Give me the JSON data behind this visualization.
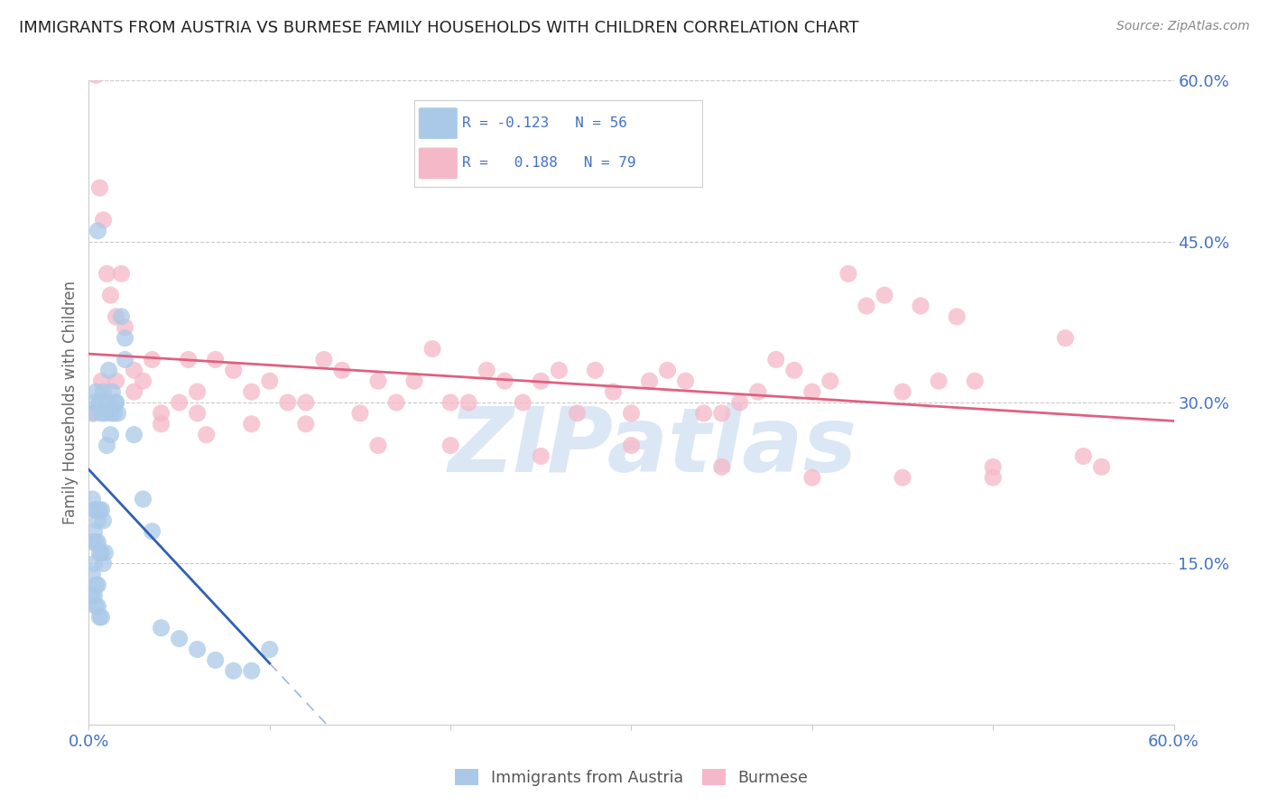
{
  "title": "IMMIGRANTS FROM AUSTRIA VS BURMESE FAMILY HOUSEHOLDS WITH CHILDREN CORRELATION CHART",
  "source": "Source: ZipAtlas.com",
  "ylabel": "Family Households with Children",
  "xlim": [
    0.0,
    0.6
  ],
  "ylim": [
    0.0,
    0.6
  ],
  "yticks_right": [
    0.15,
    0.3,
    0.45,
    0.6
  ],
  "ytick_right_labels": [
    "15.0%",
    "30.0%",
    "45.0%",
    "60.0%"
  ],
  "grid_color": "#c8c8c8",
  "bg_color": "#ffffff",
  "austria_color": "#aac9e8",
  "burmese_color": "#f5b8c8",
  "austria_line_color": "#3060b0",
  "burmese_line_color": "#e06080",
  "austria_R": -0.123,
  "austria_N": 56,
  "burmese_R": 0.188,
  "burmese_N": 79,
  "austria_label": "Immigrants from Austria",
  "burmese_label": "Burmese",
  "label_color": "#4472c4",
  "title_color": "#222222",
  "source_color": "#888888",
  "watermark": "ZIPatlas",
  "watermark_color": "#c5d8ef",
  "austria_x": [
    0.002,
    0.003,
    0.004,
    0.005,
    0.006,
    0.007,
    0.008,
    0.009,
    0.01,
    0.011,
    0.012,
    0.013,
    0.014,
    0.015,
    0.016,
    0.002,
    0.003,
    0.004,
    0.005,
    0.006,
    0.007,
    0.008,
    0.002,
    0.003,
    0.004,
    0.005,
    0.006,
    0.007,
    0.008,
    0.009,
    0.002,
    0.003,
    0.004,
    0.005,
    0.002,
    0.003,
    0.004,
    0.005,
    0.006,
    0.007,
    0.01,
    0.012,
    0.015,
    0.018,
    0.02,
    0.025,
    0.03,
    0.035,
    0.04,
    0.05,
    0.06,
    0.07,
    0.08,
    0.09,
    0.1,
    0.02
  ],
  "austria_y": [
    0.29,
    0.3,
    0.31,
    0.46,
    0.3,
    0.29,
    0.31,
    0.29,
    0.3,
    0.33,
    0.29,
    0.31,
    0.29,
    0.3,
    0.29,
    0.21,
    0.2,
    0.2,
    0.19,
    0.2,
    0.2,
    0.19,
    0.17,
    0.18,
    0.17,
    0.17,
    0.16,
    0.16,
    0.15,
    0.16,
    0.14,
    0.15,
    0.13,
    0.13,
    0.12,
    0.12,
    0.11,
    0.11,
    0.1,
    0.1,
    0.26,
    0.27,
    0.3,
    0.38,
    0.36,
    0.27,
    0.21,
    0.18,
    0.09,
    0.08,
    0.07,
    0.06,
    0.05,
    0.05,
    0.07,
    0.34
  ],
  "burmese_x": [
    0.004,
    0.006,
    0.008,
    0.01,
    0.012,
    0.015,
    0.018,
    0.02,
    0.025,
    0.03,
    0.035,
    0.04,
    0.05,
    0.055,
    0.06,
    0.065,
    0.07,
    0.08,
    0.09,
    0.1,
    0.11,
    0.12,
    0.13,
    0.14,
    0.15,
    0.16,
    0.17,
    0.18,
    0.19,
    0.2,
    0.21,
    0.22,
    0.23,
    0.24,
    0.25,
    0.26,
    0.27,
    0.28,
    0.29,
    0.3,
    0.31,
    0.32,
    0.33,
    0.34,
    0.35,
    0.36,
    0.37,
    0.38,
    0.39,
    0.4,
    0.41,
    0.42,
    0.43,
    0.44,
    0.45,
    0.46,
    0.47,
    0.48,
    0.49,
    0.5,
    0.003,
    0.007,
    0.015,
    0.025,
    0.04,
    0.06,
    0.09,
    0.12,
    0.16,
    0.2,
    0.25,
    0.3,
    0.35,
    0.4,
    0.45,
    0.5,
    0.54,
    0.55,
    0.56
  ],
  "burmese_y": [
    0.605,
    0.5,
    0.47,
    0.42,
    0.4,
    0.38,
    0.42,
    0.37,
    0.33,
    0.32,
    0.34,
    0.29,
    0.3,
    0.34,
    0.31,
    0.27,
    0.34,
    0.33,
    0.31,
    0.32,
    0.3,
    0.3,
    0.34,
    0.33,
    0.29,
    0.32,
    0.3,
    0.32,
    0.35,
    0.3,
    0.3,
    0.33,
    0.32,
    0.3,
    0.32,
    0.33,
    0.29,
    0.33,
    0.31,
    0.29,
    0.32,
    0.33,
    0.32,
    0.29,
    0.29,
    0.3,
    0.31,
    0.34,
    0.33,
    0.31,
    0.32,
    0.42,
    0.39,
    0.4,
    0.31,
    0.39,
    0.32,
    0.38,
    0.32,
    0.23,
    0.29,
    0.32,
    0.32,
    0.31,
    0.28,
    0.29,
    0.28,
    0.28,
    0.26,
    0.26,
    0.25,
    0.26,
    0.24,
    0.23,
    0.23,
    0.24,
    0.36,
    0.25,
    0.24
  ]
}
